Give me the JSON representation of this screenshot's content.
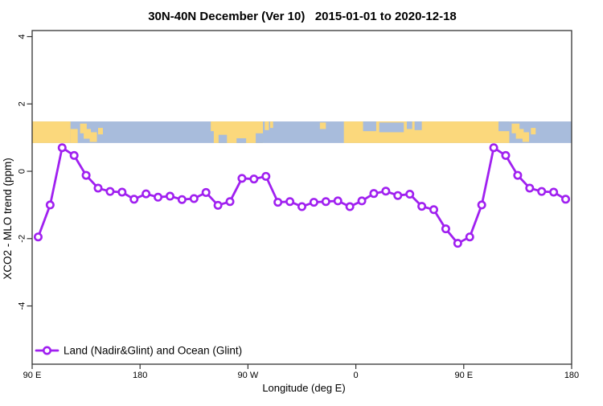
{
  "chart_data": {
    "type": "line",
    "title": "30N-40N December (Ver 10)   2015-01-01 to 2020-12-18",
    "xlabel": "Longitude (deg E)",
    "ylabel": "XCO2 - MLO trend (ppm)",
    "xlim": [
      90,
      540
    ],
    "ylim": [
      -5.73,
      4.18
    ],
    "grid": false,
    "x_ticks": [
      {
        "value": 90,
        "label": "90 E"
      },
      {
        "value": 180,
        "label": "180"
      },
      {
        "value": 270,
        "label": "90 W"
      },
      {
        "value": 360,
        "label": "0"
      },
      {
        "value": 450,
        "label": "90 E"
      },
      {
        "value": 540,
        "label": "180"
      }
    ],
    "y_ticks": [
      {
        "value": 4,
        "label": "4"
      },
      {
        "value": 2,
        "label": "2"
      },
      {
        "value": 0,
        "label": "0"
      },
      {
        "value": -2,
        "label": "-2"
      },
      {
        "value": -4,
        "label": "-4"
      }
    ],
    "legend": {
      "position": "inside-bottom-left",
      "entries": [
        {
          "label": "Land (Nadir&Glint) and Ocean (Glint)",
          "color": "#a020f0",
          "marker": "open-circle"
        }
      ]
    },
    "series": [
      {
        "name": "Land (Nadir&Glint) and Ocean (Glint)",
        "color": "#a020f0",
        "x": [
          95,
          105,
          115,
          125,
          135,
          145,
          155,
          165,
          175,
          185,
          195,
          205,
          215,
          225,
          235,
          245,
          255,
          265,
          275,
          285,
          295,
          305,
          315,
          325,
          335,
          345,
          355,
          365,
          375,
          385,
          395,
          405,
          415,
          425,
          435,
          445,
          455,
          465,
          475,
          485,
          495,
          505,
          515,
          525,
          535
        ],
        "y": [
          -1.95,
          -1.0,
          0.7,
          0.47,
          -0.12,
          -0.5,
          -0.6,
          -0.62,
          -0.83,
          -0.67,
          -0.77,
          -0.74,
          -0.84,
          -0.81,
          -0.63,
          -1.01,
          -0.9,
          -0.21,
          -0.23,
          -0.15,
          -0.92,
          -0.9,
          -1.05,
          -0.92,
          -0.9,
          -0.88,
          -1.05,
          -0.88,
          -0.66,
          -0.59,
          -0.72,
          -0.68,
          -1.04,
          -1.14,
          -1.71,
          -2.14,
          -1.95,
          -1.0,
          0.7,
          0.47,
          -0.12,
          -0.5,
          -0.6,
          -0.62,
          -0.83
        ]
      }
    ],
    "map_strip": {
      "description": "world land/ocean band for 30N-40N drawn across the plot",
      "ocean_color": "#a8bcdc",
      "land_color": "#fbd87c",
      "ppm_top": 1.48,
      "ppm_bottom": 0.84,
      "land_segments": [
        [
          90,
          122,
          0,
          1
        ],
        [
          122,
          128,
          0.35,
          1
        ],
        [
          130,
          135.5,
          0.1,
          0.55
        ],
        [
          133,
          139,
          0.35,
          0.8
        ],
        [
          138,
          144,
          0.5,
          0.95
        ],
        [
          145,
          149,
          0.3,
          0.6
        ],
        [
          239,
          242,
          0,
          0.45
        ],
        [
          241.5,
          282.5,
          0,
          1
        ],
        [
          284,
          287.5,
          0,
          0.4
        ],
        [
          288.5,
          291,
          0,
          0.3
        ],
        [
          330,
          335,
          0.05,
          0.35
        ],
        [
          350,
          488,
          0,
          1
        ],
        [
          490,
          496.5,
          0.1,
          0.55
        ],
        [
          493.5,
          500,
          0.35,
          0.8
        ],
        [
          499,
          504.5,
          0.5,
          0.95
        ],
        [
          506,
          510,
          0.3,
          0.6
        ]
      ],
      "water_notches": [
        [
          245.5,
          252.5,
          0.62,
          1
        ],
        [
          260.5,
          268.5,
          0.78,
          1
        ],
        [
          276.5,
          282.5,
          0.55,
          1
        ],
        [
          366,
          377,
          0,
          0.45
        ],
        [
          379.5,
          400,
          0.05,
          0.5
        ],
        [
          402.5,
          407,
          0,
          0.35
        ],
        [
          409,
          415,
          0,
          0.4
        ],
        [
          479,
          488,
          0,
          0.45
        ]
      ]
    },
    "axis_color": "#333333"
  }
}
